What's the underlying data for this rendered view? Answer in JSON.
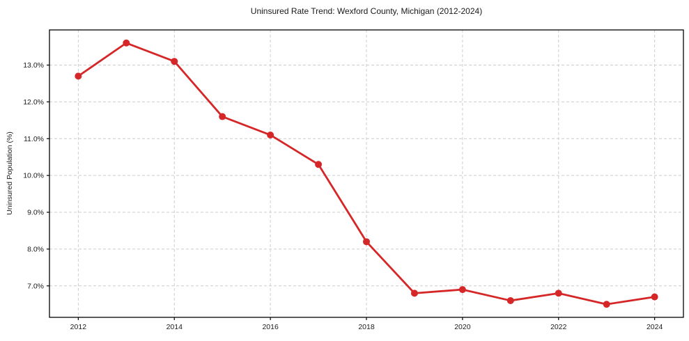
{
  "figure": {
    "background": "#ffffff",
    "text_color": "#1a1a1a",
    "axis_color": "#000000"
  },
  "chart_data": {
    "type": "line",
    "title": "Uninsured Rate Trend: Wexford County, Michigan (2012-2024)",
    "xlabel": "",
    "ylabel": "Uninsured Population (%)",
    "x": [
      2012,
      2013,
      2014,
      2015,
      2016,
      2017,
      2018,
      2019,
      2020,
      2021,
      2022,
      2023,
      2024
    ],
    "series": [
      {
        "name": "Uninsured rate",
        "values": [
          12.7,
          13.6,
          13.1,
          11.6,
          11.1,
          10.3,
          8.2,
          6.8,
          6.9,
          6.6,
          6.8,
          6.5,
          6.7
        ],
        "color": "#d62728",
        "marker": "circle",
        "line_width": 2.8,
        "marker_radius": 5
      }
    ],
    "xlim": [
      2011.4,
      2024.6
    ],
    "ylim": [
      6.145,
      13.955
    ],
    "xticks": {
      "values": [
        2012,
        2014,
        2016,
        2018,
        2020,
        2022,
        2024
      ],
      "labels": [
        "2012",
        "2014",
        "2016",
        "2018",
        "2020",
        "2022",
        "2024"
      ]
    },
    "yticks": {
      "values": [
        7,
        8,
        9,
        10,
        11,
        12,
        13
      ],
      "labels": [
        "7.0%",
        "8.0%",
        "9.0%",
        "10.0%",
        "11.0%",
        "12.0%",
        "13.0%"
      ]
    },
    "grid": {
      "show": true,
      "style": "dashed",
      "color": "#cccccc"
    },
    "legend_position": "none"
  }
}
